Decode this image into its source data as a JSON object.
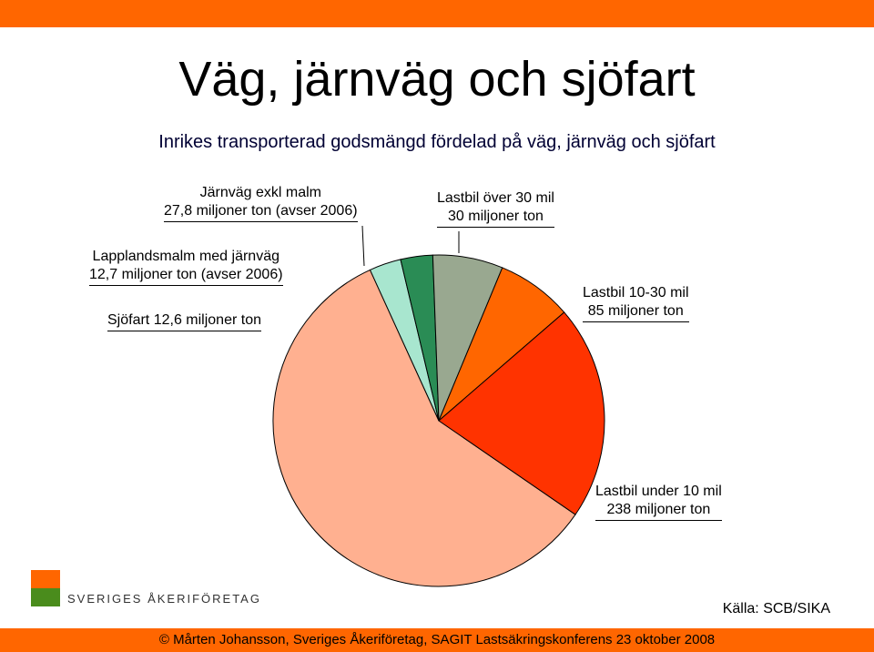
{
  "slide": {
    "title": "Väg, järnväg och sjöfart",
    "subtitle": "Inrikes transporterad godsmängd fördelad på väg, järnväg och sjöfart",
    "source": "Källa: SCB/SIKA",
    "footer": "© Mårten Johansson, Sveriges Åkeriföretag, SAGIT Lastsäkringskonferens 23 oktober 2008",
    "logo_text": "SVERIGES ÅKERIFÖRETAG"
  },
  "chart_data": {
    "type": "pie",
    "title": "",
    "slices": [
      {
        "name": "Lastbil under 10 mil",
        "value": 238,
        "value_text": "238 miljoner ton",
        "color": "#ffb090"
      },
      {
        "name": "Sjöfart",
        "value": 12.6,
        "value_text": "12,6 miljoner ton",
        "color": "#a8e6cf"
      },
      {
        "name": "Lapplandsmalm med järnväg",
        "value": 12.7,
        "value_text": "12,7 miljoner ton (avser 2006)",
        "color": "#2a8c55"
      },
      {
        "name": "Järnväg exkl malm",
        "value": 27.8,
        "value_text": "27,8 miljoner ton (avser 2006)",
        "color": "#99a890"
      },
      {
        "name": "Lastbil över 30 mil",
        "value": 30,
        "value_text": "30 miljoner ton",
        "color": "#ff6600"
      },
      {
        "name": "Lastbil 10-30 mil",
        "value": 85,
        "value_text": "85 miljoner ton",
        "color": "#ff3300"
      }
    ]
  }
}
